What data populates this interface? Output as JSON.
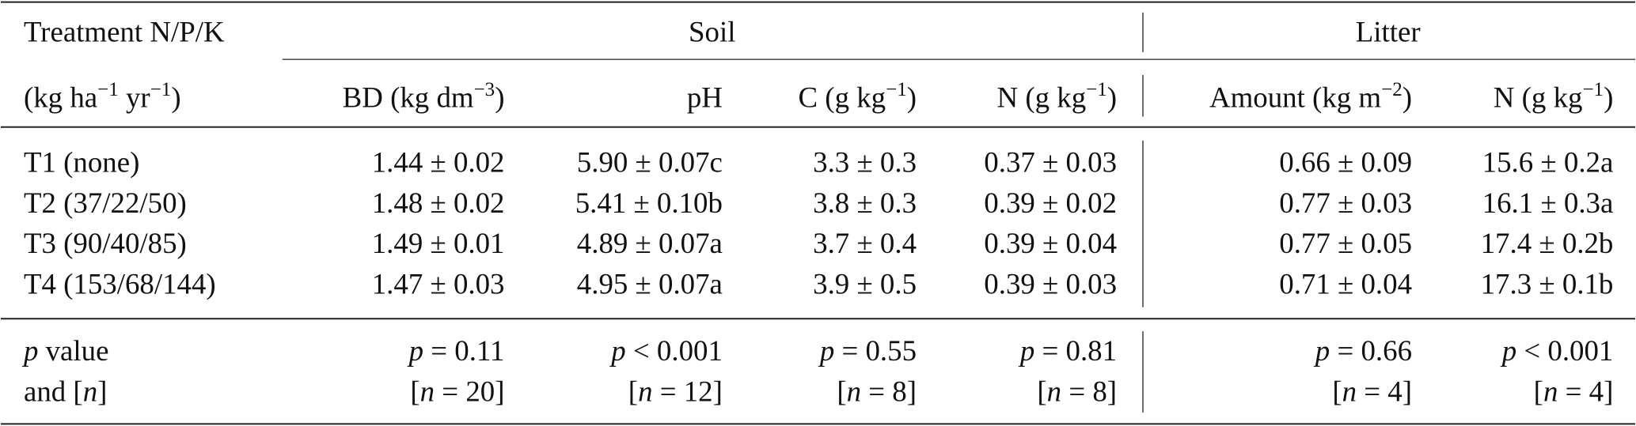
{
  "table": {
    "group_header": {
      "first": "Treatment N/P/K",
      "soil": "Soil",
      "litter": "Litter"
    },
    "header": [
      [
        {
          "t": "(kg ha"
        },
        {
          "t": "−1",
          "sup": true
        },
        {
          "t": " yr"
        },
        {
          "t": "−1",
          "sup": true
        },
        {
          "t": ")"
        }
      ],
      [
        {
          "t": "BD (kg dm"
        },
        {
          "t": "−3",
          "sup": true
        },
        {
          "t": ")"
        }
      ],
      [
        {
          "t": "pH"
        }
      ],
      [
        {
          "t": "C (g kg"
        },
        {
          "t": "−1",
          "sup": true
        },
        {
          "t": ")"
        }
      ],
      [
        {
          "t": "N (g kg"
        },
        {
          "t": "−1",
          "sup": true
        },
        {
          "t": ")"
        }
      ],
      [
        {
          "t": "Amount (kg m"
        },
        {
          "t": "−2",
          "sup": true
        },
        {
          "t": ")"
        }
      ],
      [
        {
          "t": "N (g kg"
        },
        {
          "t": "−1",
          "sup": true
        },
        {
          "t": ")"
        }
      ]
    ],
    "rows": [
      [
        "T1 (none)",
        "1.44 ± 0.02",
        "5.90 ± 0.07c",
        "3.3 ± 0.3",
        "0.37 ± 0.03",
        "0.66 ± 0.09",
        "15.6 ± 0.2a"
      ],
      [
        "T2 (37/22/50)",
        "1.48 ± 0.02",
        "5.41 ± 0.10b",
        "3.8 ± 0.3",
        "0.39 ± 0.02",
        "0.77 ± 0.03",
        "16.1 ± 0.3a"
      ],
      [
        "T3 (90/40/85)",
        "1.49 ± 0.01",
        "4.89 ± 0.07a",
        "3.7 ± 0.4",
        "0.39 ± 0.04",
        "0.77 ± 0.05",
        "17.4 ± 0.2b"
      ],
      [
        "T4 (153/68/144)",
        "1.47 ± 0.03",
        "4.95 ± 0.07a",
        "3.9 ± 0.5",
        "0.39 ± 0.03",
        "0.71 ± 0.04",
        "17.3 ± 0.1b"
      ]
    ],
    "footer": [
      [
        [
          {
            "t": "p",
            "i": true
          },
          {
            "t": " value"
          }
        ],
        [
          {
            "t": "p",
            "i": true
          },
          {
            "t": " = 0.11"
          }
        ],
        [
          {
            "t": "p",
            "i": true
          },
          {
            "t": " < 0.001"
          }
        ],
        [
          {
            "t": "p",
            "i": true
          },
          {
            "t": " = 0.55"
          }
        ],
        [
          {
            "t": "p",
            "i": true
          },
          {
            "t": " = 0.81"
          }
        ],
        [
          {
            "t": "p",
            "i": true
          },
          {
            "t": " = 0.66"
          }
        ],
        [
          {
            "t": "p",
            "i": true
          },
          {
            "t": " < 0.001"
          }
        ]
      ],
      [
        [
          {
            "t": "and ["
          },
          {
            "t": "n",
            "i": true
          },
          {
            "t": "]"
          }
        ],
        [
          {
            "t": "["
          },
          {
            "t": "n",
            "i": true
          },
          {
            "t": " = 20]"
          }
        ],
        [
          {
            "t": "["
          },
          {
            "t": "n",
            "i": true
          },
          {
            "t": " = 12]"
          }
        ],
        [
          {
            "t": "["
          },
          {
            "t": "n",
            "i": true
          },
          {
            "t": " = 8]"
          }
        ],
        [
          {
            "t": "["
          },
          {
            "t": "n",
            "i": true
          },
          {
            "t": " = 8]"
          }
        ],
        [
          {
            "t": "["
          },
          {
            "t": "n",
            "i": true
          },
          {
            "t": " = 4]"
          }
        ],
        [
          {
            "t": "["
          },
          {
            "t": "n",
            "i": true
          },
          {
            "t": " = 4]"
          }
        ]
      ]
    ]
  }
}
